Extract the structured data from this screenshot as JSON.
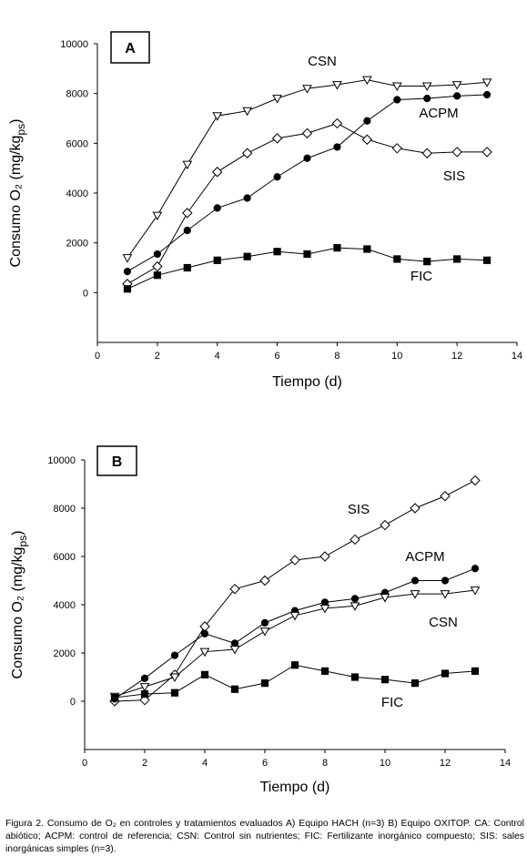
{
  "caption": "Figura 2. Consumo de O₂ en controles y tratamientos evaluados A) Equipo HACH (n=3) B) Equipo OXITOP. CA: Control abiótico; ACPM: control de referencia; CSN: Control sin nutrientes; FIC: Fertilizante inorgánico compuesto; SIS: sales inorgánicas simples (n=3).",
  "chart_data": [
    {
      "type": "line",
      "panel_label": "A",
      "xlabel": "Tiempo (d)",
      "ylabel": "Consumo O₂ (mg/kg",
      "ylabel_sub": "ps",
      "ylabel_end": ")",
      "xlim": [
        0,
        14
      ],
      "ylim": [
        -2000,
        10000
      ],
      "xticks": [
        0,
        2,
        4,
        6,
        8,
        10,
        12,
        14
      ],
      "yticks": [
        0,
        2000,
        4000,
        6000,
        8000,
        10000
      ],
      "grid": false,
      "x": [
        1,
        2,
        3,
        4,
        5,
        6,
        7,
        8,
        9,
        10,
        11,
        12,
        13
      ],
      "series": [
        {
          "name": "CSN",
          "marker": "triangle-down-open",
          "values": [
            1400,
            3100,
            5150,
            7100,
            7300,
            7800,
            8200,
            8350,
            8550,
            8300,
            8300,
            8350,
            8450
          ]
        },
        {
          "name": "ACPM",
          "marker": "circle-filled",
          "values": [
            850,
            1550,
            2500,
            3400,
            3800,
            4650,
            5400,
            5850,
            6900,
            7750,
            7800,
            7900,
            7950
          ]
        },
        {
          "name": "SIS",
          "marker": "diamond-open",
          "values": [
            350,
            1050,
            3200,
            4850,
            5600,
            6200,
            6400,
            6800,
            6150,
            5800,
            5600,
            5650,
            5650
          ]
        },
        {
          "name": "FIC",
          "marker": "square-filled",
          "values": [
            150,
            700,
            1000,
            1300,
            1450,
            1650,
            1550,
            1800,
            1750,
            1350,
            1250,
            1350,
            1300
          ]
        }
      ]
    },
    {
      "type": "line",
      "panel_label": "B",
      "xlabel": "Tiempo (d)",
      "ylabel": "Consumo O₂ (mg/kg",
      "ylabel_sub": "ps",
      "ylabel_end": ")",
      "xlim": [
        0,
        14
      ],
      "ylim": [
        -2000,
        10000
      ],
      "xticks": [
        0,
        2,
        4,
        6,
        8,
        10,
        12,
        14
      ],
      "yticks": [
        0,
        2000,
        4000,
        6000,
        8000,
        10000
      ],
      "grid": false,
      "x": [
        1,
        2,
        3,
        4,
        5,
        6,
        7,
        8,
        9,
        10,
        11,
        12,
        13
      ],
      "series": [
        {
          "name": "SIS",
          "marker": "diamond-open",
          "values": [
            0,
            50,
            1100,
            3100,
            4650,
            5000,
            5850,
            6000,
            6700,
            7300,
            8000,
            8500,
            9150
          ]
        },
        {
          "name": "ACPM",
          "marker": "circle-filled",
          "values": [
            100,
            950,
            1900,
            2800,
            2400,
            3250,
            3750,
            4100,
            4250,
            4500,
            5000,
            5000,
            5500
          ]
        },
        {
          "name": "CSN",
          "marker": "triangle-down-open",
          "values": [
            200,
            600,
            1000,
            2050,
            2150,
            2900,
            3550,
            3850,
            3950,
            4300,
            4450,
            4450,
            4600
          ]
        },
        {
          "name": "FIC",
          "marker": "square-filled",
          "values": [
            150,
            300,
            350,
            1100,
            500,
            750,
            1500,
            1250,
            1000,
            900,
            750,
            1150,
            1250
          ]
        }
      ]
    }
  ]
}
